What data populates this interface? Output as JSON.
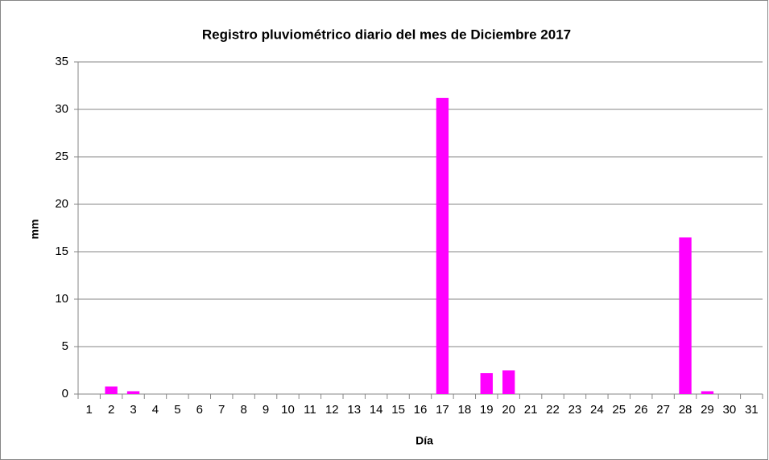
{
  "chart_data": {
    "type": "bar",
    "title": "Registro pluviométrico diario del mes de Diciembre 2017",
    "x_label": "Día",
    "y_label": "mm",
    "categories": [
      "1",
      "2",
      "3",
      "4",
      "5",
      "6",
      "7",
      "8",
      "9",
      "10",
      "11",
      "12",
      "13",
      "14",
      "15",
      "16",
      "17",
      "18",
      "19",
      "20",
      "21",
      "22",
      "23",
      "24",
      "25",
      "26",
      "27",
      "28",
      "29",
      "30",
      "31"
    ],
    "values": [
      0,
      0.8,
      0.3,
      0,
      0,
      0,
      0,
      0,
      0,
      0,
      0,
      0,
      0,
      0,
      0,
      0,
      31.2,
      0,
      2.2,
      2.5,
      0,
      0,
      0,
      0,
      0,
      0,
      0,
      16.5,
      0.3,
      0,
      0
    ],
    "color": "#ff00ff",
    "ylim": [
      0,
      35
    ],
    "yticks": [
      0,
      5,
      10,
      15,
      20,
      25,
      30,
      35
    ],
    "grid": true
  }
}
